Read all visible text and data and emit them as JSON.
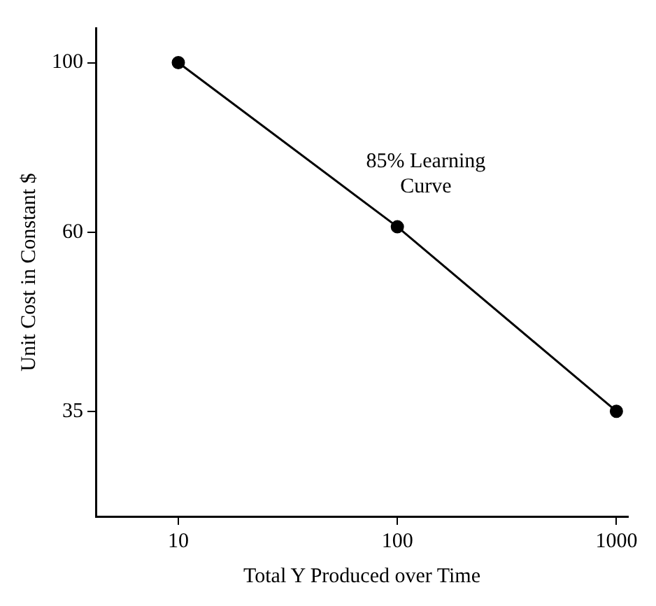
{
  "chart_data": {
    "type": "line",
    "xlabel": "Total Y Produced over Time",
    "ylabel": "Unit Cost in Constant $",
    "log": "xy",
    "x": [
      10,
      100,
      1000
    ],
    "series": [
      {
        "color": "#000000",
        "values": [
          100,
          61,
          35
        ]
      }
    ],
    "xlim": [
      4.2,
      1130
    ],
    "xticks": [
      10,
      100,
      1000
    ],
    "ylim": [
      25.5,
      111
    ],
    "yticks": [
      35,
      60,
      100
    ],
    "marker": "circle",
    "line_style": "solid",
    "legend": false,
    "annotations": [
      "85% Learning Curve"
    ]
  }
}
